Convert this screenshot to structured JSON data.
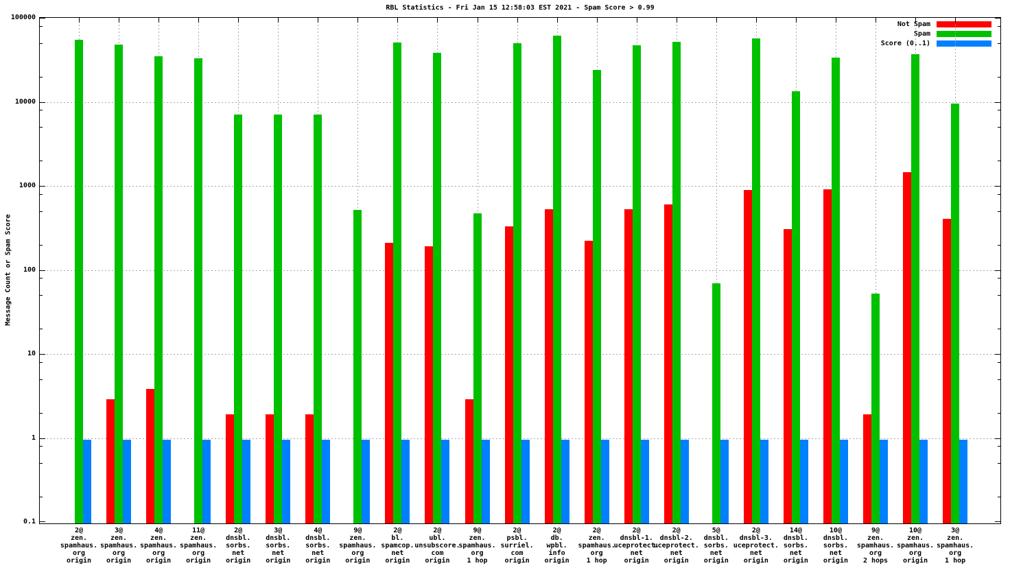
{
  "title": "RBL Statistics - Fri Jan 15 12:58:03 EST 2021 - Spam Score > 0.99",
  "y_axis": {
    "label": "Message Count or Spam Score",
    "tick_labels": [
      "0.1",
      "1",
      "10",
      "100",
      "1000",
      "10000",
      "100000"
    ]
  },
  "legend": {
    "position": "top-right-inside",
    "entries": [
      {
        "label": "Not Spam",
        "color": "#ff0000"
      },
      {
        "label": "Spam",
        "color": "#00c000"
      },
      {
        "label": "Score (0..1)",
        "color": "#0080ff"
      }
    ]
  },
  "chart_data": {
    "type": "bar",
    "scale_y": "log10",
    "ylim": [
      0.1,
      100000
    ],
    "grid": true,
    "title": "RBL Statistics - Fri Jan 15 12:58:03 EST 2021 - Spam Score > 0.99",
    "xlabel": "",
    "ylabel": "Message Count or Spam Score",
    "categories": [
      [
        "2@",
        "zen.",
        "spamhaus.",
        "org",
        "origin"
      ],
      [
        "3@",
        "zen.",
        "spamhaus.",
        "org",
        "origin"
      ],
      [
        "4@",
        "zen.",
        "spamhaus.",
        "org",
        "origin"
      ],
      [
        "11@",
        "zen.",
        "spamhaus.",
        "org",
        "origin"
      ],
      [
        "2@",
        "dnsbl.",
        "sorbs.",
        "net",
        "origin"
      ],
      [
        "3@",
        "dnsbl.",
        "sorbs.",
        "net",
        "origin"
      ],
      [
        "4@",
        "dnsbl.",
        "sorbs.",
        "net",
        "origin"
      ],
      [
        "9@",
        "zen.",
        "spamhaus.",
        "org",
        "origin"
      ],
      [
        "2@",
        "bl.",
        "spamcop.",
        "net",
        "origin"
      ],
      [
        "2@",
        "ubl.",
        "unsubscore.",
        "com",
        "origin"
      ],
      [
        "9@",
        "zen.",
        "spamhaus.",
        "org",
        "1 hop"
      ],
      [
        "2@",
        "psbl.",
        "surriel.",
        "com",
        "origin"
      ],
      [
        "2@",
        "db.",
        "wpbl.",
        "info",
        "origin"
      ],
      [
        "2@",
        "zen.",
        "spamhaus.",
        "org",
        "1 hop"
      ],
      [
        "2@",
        "dnsbl-1.",
        "uceprotect.",
        "net",
        "origin"
      ],
      [
        "2@",
        "dnsbl-2.",
        "uceprotect.",
        "net",
        "origin"
      ],
      [
        "5@",
        "dnsbl.",
        "sorbs.",
        "net",
        "origin"
      ],
      [
        "2@",
        "dnsbl-3.",
        "uceprotect.",
        "net",
        "origin"
      ],
      [
        "14@",
        "dnsbl.",
        "sorbs.",
        "net",
        "origin"
      ],
      [
        "10@",
        "dnsbl.",
        "sorbs.",
        "net",
        "origin"
      ],
      [
        "9@",
        "zen.",
        "spamhaus.",
        "org",
        "2 hops"
      ],
      [
        "10@",
        "zen.",
        "spamhaus.",
        "org",
        "origin"
      ],
      [
        "3@",
        "zen.",
        "spamhaus.",
        "org",
        "1 hop"
      ]
    ],
    "series": [
      {
        "name": "Not Spam",
        "color": "#ff0000",
        "values": [
          null,
          3,
          4,
          null,
          2,
          2,
          2,
          null,
          220,
          200,
          3,
          340,
          550,
          230,
          550,
          620,
          null,
          930,
          320,
          950,
          2,
          1500,
          420
        ]
      },
      {
        "name": "Spam",
        "color": "#00c000",
        "values": [
          57000,
          50000,
          36000,
          34000,
          7400,
          7400,
          7400,
          540,
          53000,
          40000,
          490,
          52000,
          64000,
          25000,
          49000,
          54000,
          72,
          59000,
          14000,
          35000,
          54,
          38000,
          10000
        ]
      },
      {
        "name": "Score (0..1)",
        "color": "#0080ff",
        "values": [
          1,
          1,
          1,
          1,
          1,
          1,
          1,
          1,
          1,
          1,
          1,
          1,
          1,
          1,
          1,
          1,
          1,
          1,
          1,
          1,
          1,
          1,
          1
        ]
      }
    ],
    "minor_tick_multipliers": [
      2,
      5,
      8
    ]
  }
}
